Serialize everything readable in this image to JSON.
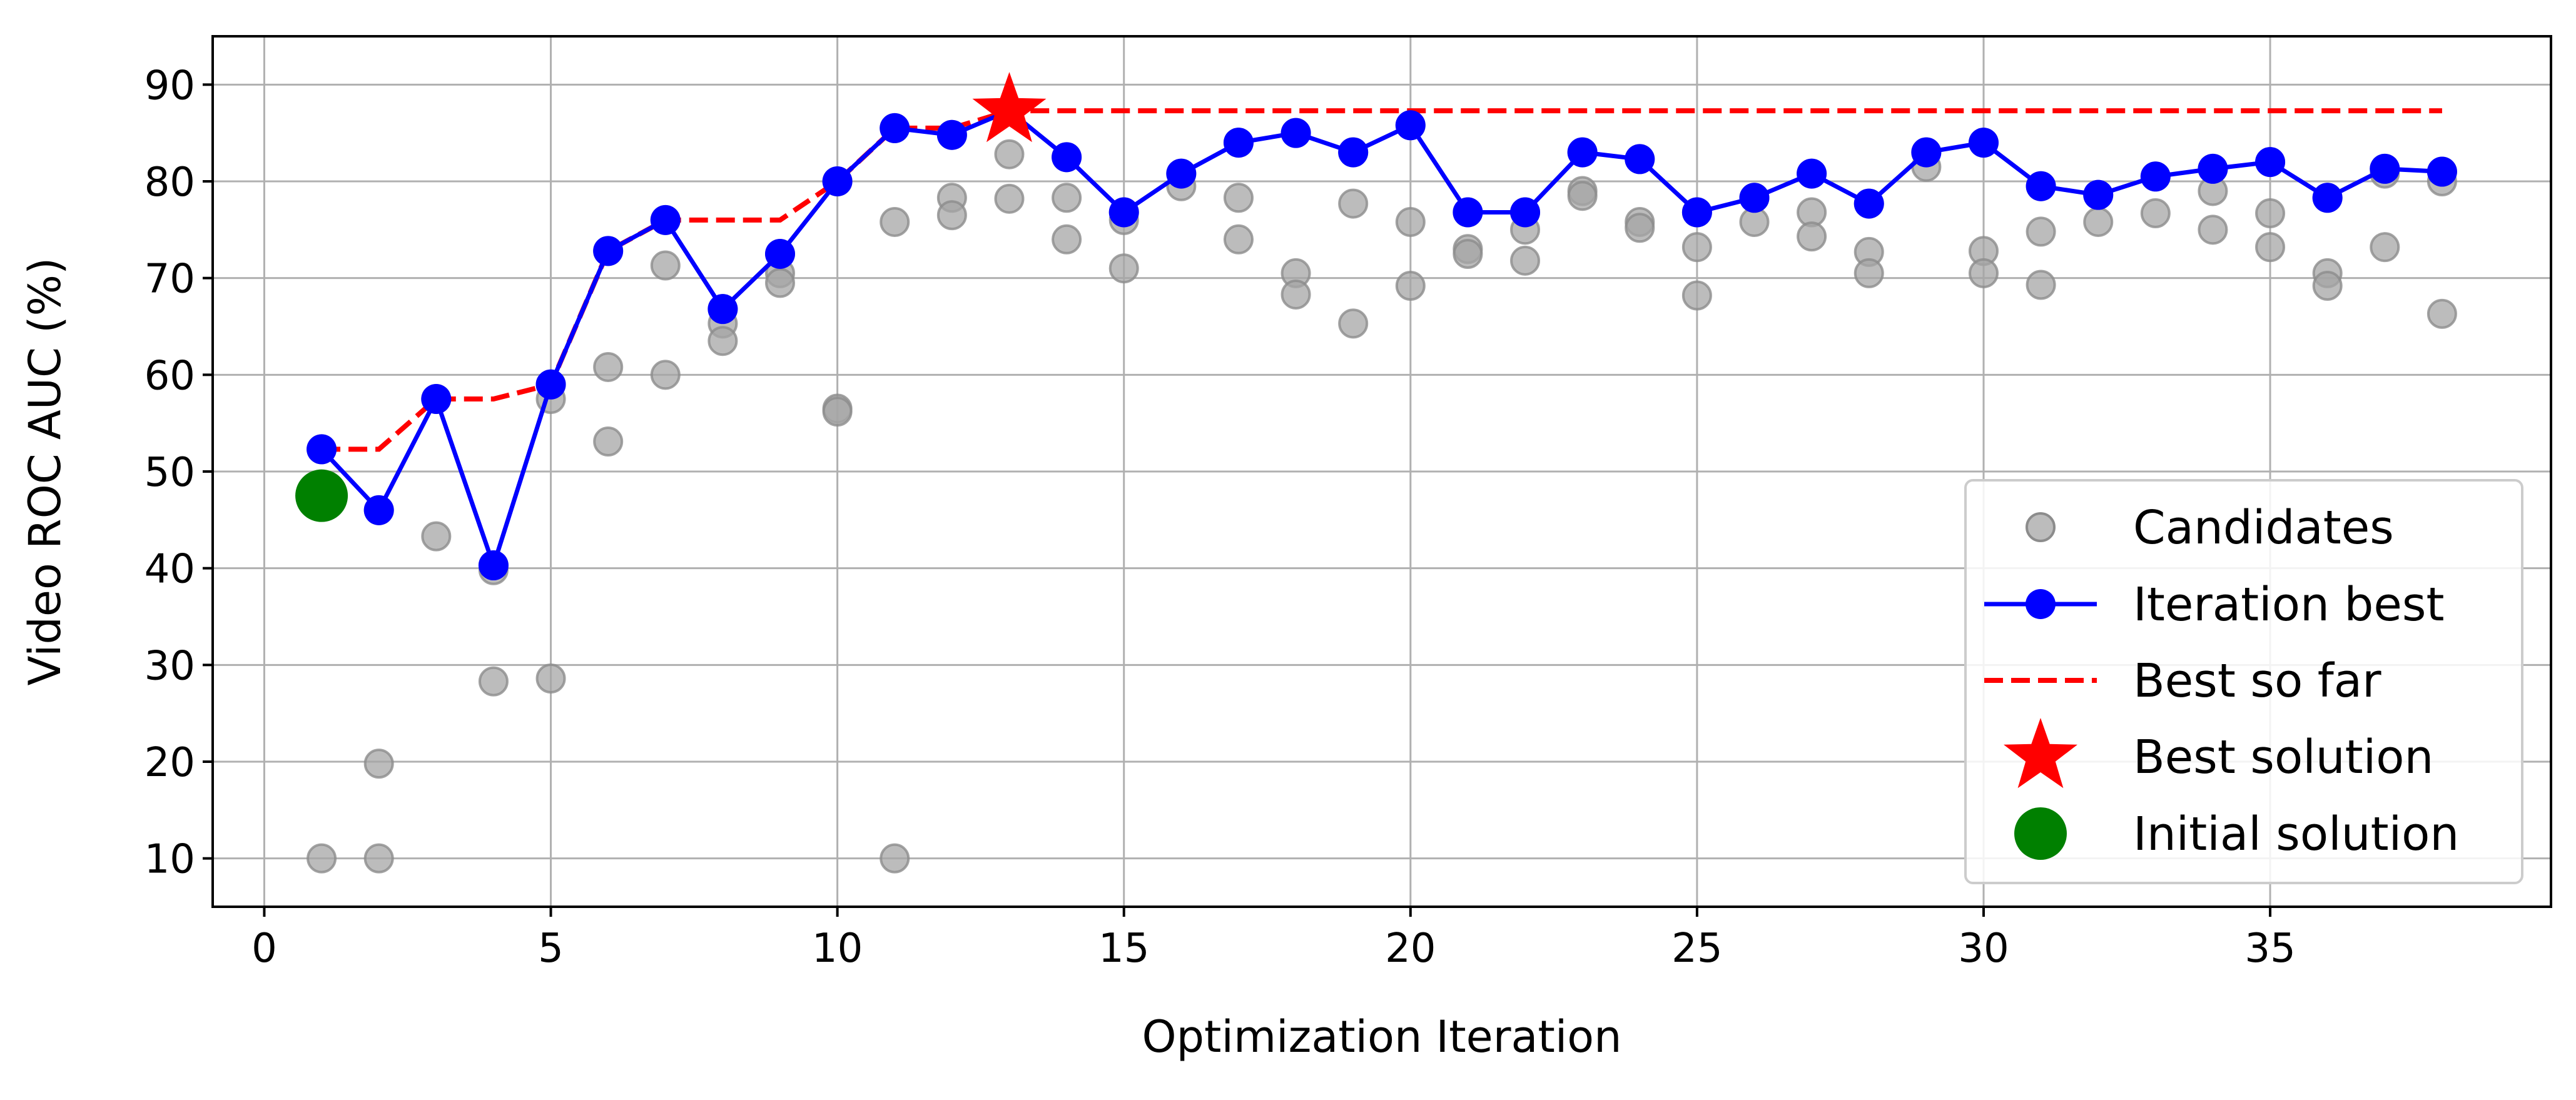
{
  "chart_data": {
    "type": "scatter",
    "title": "",
    "xlabel": "Optimization Iteration",
    "ylabel": "Video ROC AUC (%)",
    "xlim": [
      -0.9,
      39.9
    ],
    "ylim": [
      5,
      95
    ],
    "xticks": [
      0,
      5,
      10,
      15,
      20,
      25,
      30,
      35
    ],
    "yticks": [
      10,
      20,
      30,
      40,
      50,
      60,
      70,
      80,
      90
    ],
    "grid": true,
    "legend_position": "lower-right",
    "colors": {
      "candidates": "#a6a6a6",
      "iteration_best": "#0000ff",
      "best_so_far": "#ff0000",
      "best_solution": "#ff0000",
      "initial_solution": "#008000"
    },
    "series": [
      {
        "name": "Candidates",
        "kind": "scatter",
        "points": [
          [
            1,
            52.3
          ],
          [
            1,
            10
          ],
          [
            2,
            46
          ],
          [
            2,
            19.8
          ],
          [
            2,
            10
          ],
          [
            3,
            57.5
          ],
          [
            3,
            43.3
          ],
          [
            4,
            40.3
          ],
          [
            4,
            39.8
          ],
          [
            4,
            28.3
          ],
          [
            5,
            59
          ],
          [
            5,
            57.5
          ],
          [
            5,
            28.6
          ],
          [
            6,
            72.8
          ],
          [
            6,
            60.8
          ],
          [
            6,
            53.1
          ],
          [
            7,
            76
          ],
          [
            7,
            71.3
          ],
          [
            7,
            60
          ],
          [
            8,
            66.8
          ],
          [
            8,
            65.3
          ],
          [
            8,
            63.5
          ],
          [
            9,
            72.5
          ],
          [
            9,
            70.5
          ],
          [
            9,
            69.5
          ],
          [
            10,
            80
          ],
          [
            10,
            56.5
          ],
          [
            10,
            56.2
          ],
          [
            11,
            85.5
          ],
          [
            11,
            75.8
          ],
          [
            11,
            10
          ],
          [
            12,
            84.8
          ],
          [
            12,
            78.3
          ],
          [
            12,
            76.5
          ],
          [
            13,
            87.3
          ],
          [
            13,
            82.8
          ],
          [
            13,
            78.2
          ],
          [
            14,
            82.5
          ],
          [
            14,
            78.3
          ],
          [
            14,
            74
          ],
          [
            15,
            76.8
          ],
          [
            15,
            76
          ],
          [
            15,
            71
          ],
          [
            16,
            80.8
          ],
          [
            16,
            79.5
          ],
          [
            17,
            84
          ],
          [
            17,
            78.3
          ],
          [
            17,
            74
          ],
          [
            18,
            85
          ],
          [
            18,
            70.5
          ],
          [
            18,
            68.3
          ],
          [
            19,
            83
          ],
          [
            19,
            77.7
          ],
          [
            19,
            65.3
          ],
          [
            20,
            85.8
          ],
          [
            20,
            75.8
          ],
          [
            20,
            69.2
          ],
          [
            21,
            76.8
          ],
          [
            21,
            73
          ],
          [
            21,
            72.5
          ],
          [
            22,
            76.8
          ],
          [
            22,
            75
          ],
          [
            22,
            71.8
          ],
          [
            23,
            83
          ],
          [
            23,
            79
          ],
          [
            23,
            78.5
          ],
          [
            24,
            82.3
          ],
          [
            24,
            75.8
          ],
          [
            24,
            75.2
          ],
          [
            25,
            76.8
          ],
          [
            25,
            73.2
          ],
          [
            25,
            68.2
          ],
          [
            26,
            78.3
          ],
          [
            26,
            75.8
          ],
          [
            27,
            80.8
          ],
          [
            27,
            76.8
          ],
          [
            27,
            74.3
          ],
          [
            28,
            77.7
          ],
          [
            28,
            72.7
          ],
          [
            28,
            70.5
          ],
          [
            29,
            83
          ],
          [
            29,
            81.5
          ],
          [
            30,
            84
          ],
          [
            30,
            72.8
          ],
          [
            30,
            70.5
          ],
          [
            31,
            79.5
          ],
          [
            31,
            74.8
          ],
          [
            31,
            69.3
          ],
          [
            32,
            78.6
          ],
          [
            32,
            75.8
          ],
          [
            33,
            80.5
          ],
          [
            33,
            76.7
          ],
          [
            34,
            81.3
          ],
          [
            34,
            79
          ],
          [
            34,
            75
          ],
          [
            35,
            82
          ],
          [
            35,
            76.7
          ],
          [
            35,
            73.2
          ],
          [
            36,
            78.3
          ],
          [
            36,
            70.5
          ],
          [
            36,
            69.2
          ],
          [
            37,
            81.3
          ],
          [
            37,
            80.8
          ],
          [
            37,
            73.2
          ],
          [
            38,
            81
          ],
          [
            38,
            80
          ],
          [
            38,
            66.3
          ]
        ]
      },
      {
        "name": "Iteration best",
        "kind": "line-marker",
        "x": [
          1,
          2,
          3,
          4,
          5,
          6,
          7,
          8,
          9,
          10,
          11,
          12,
          13,
          14,
          15,
          16,
          17,
          18,
          19,
          20,
          21,
          22,
          23,
          24,
          25,
          26,
          27,
          28,
          29,
          30,
          31,
          32,
          33,
          34,
          35,
          36,
          37,
          38
        ],
        "y": [
          52.3,
          46,
          57.5,
          40.3,
          59,
          72.8,
          76,
          66.8,
          72.5,
          80,
          85.5,
          84.8,
          87.3,
          82.5,
          76.8,
          80.8,
          84,
          85,
          83,
          85.8,
          76.8,
          76.8,
          83,
          82.3,
          76.8,
          78.3,
          80.8,
          77.7,
          83,
          84,
          79.5,
          78.6,
          80.5,
          81.3,
          82,
          78.3,
          81.3,
          81
        ]
      },
      {
        "name": "Best so far",
        "kind": "dashed-line",
        "x": [
          1,
          2,
          3,
          4,
          5,
          6,
          7,
          8,
          9,
          10,
          11,
          12,
          13,
          14,
          15,
          16,
          17,
          18,
          19,
          20,
          21,
          22,
          23,
          24,
          25,
          26,
          27,
          28,
          29,
          30,
          31,
          32,
          33,
          34,
          35,
          36,
          37,
          38
        ],
        "y": [
          52.3,
          52.3,
          57.5,
          57.5,
          59,
          72.8,
          76,
          76,
          76,
          80,
          85.5,
          85.5,
          87.3,
          87.3,
          87.3,
          87.3,
          87.3,
          87.3,
          87.3,
          87.3,
          87.3,
          87.3,
          87.3,
          87.3,
          87.3,
          87.3,
          87.3,
          87.3,
          87.3,
          87.3,
          87.3,
          87.3,
          87.3,
          87.3,
          87.3,
          87.3,
          87.3,
          87.3
        ]
      },
      {
        "name": "Best solution",
        "kind": "star",
        "points": [
          [
            13,
            87.3
          ]
        ]
      },
      {
        "name": "Initial solution",
        "kind": "big-dot",
        "points": [
          [
            1,
            47.5
          ]
        ]
      }
    ]
  }
}
